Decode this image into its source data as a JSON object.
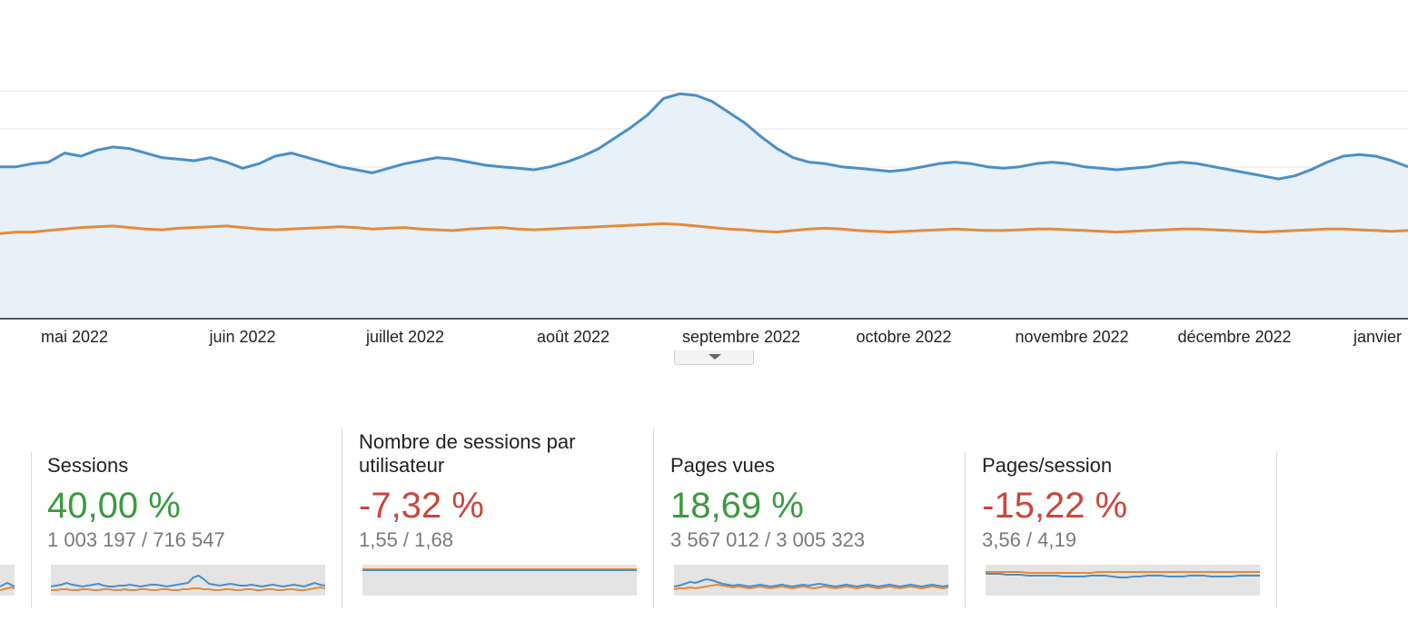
{
  "chart_data": {
    "type": "line",
    "x_axis_labels": [
      "mai 2022",
      "juin 2022",
      "juillet 2022",
      "août 2022",
      "septembre 2022",
      "octobre 2022",
      "novembre 2022",
      "décembre 2022",
      "janvier"
    ],
    "grid": true,
    "series": [
      {
        "color": "#4b8fc5",
        "area": true,
        "values": [
          200,
          200,
          204,
          206,
          218,
          214,
          222,
          226,
          224,
          218,
          212,
          210,
          208,
          212,
          206,
          198,
          204,
          214,
          218,
          212,
          206,
          200,
          196,
          192,
          198,
          204,
          208,
          212,
          210,
          206,
          202,
          200,
          198,
          196,
          200,
          206,
          214,
          224,
          238,
          252,
          268,
          290,
          296,
          294,
          286,
          272,
          258,
          240,
          224,
          212,
          206,
          204,
          200,
          198,
          196,
          194,
          196,
          200,
          204,
          206,
          204,
          200,
          198,
          200,
          204,
          206,
          204,
          200,
          198,
          196,
          198,
          200,
          204,
          206,
          204,
          200,
          196,
          192,
          188,
          184,
          188,
          196,
          206,
          214,
          216,
          214,
          208,
          200
        ]
      },
      {
        "color": "#e38a3a",
        "values": [
          112,
          114,
          114,
          116,
          118,
          120,
          121,
          122,
          120,
          118,
          117,
          119,
          120,
          121,
          122,
          120,
          118,
          117,
          118,
          119,
          120,
          121,
          120,
          118,
          119,
          120,
          118,
          117,
          116,
          118,
          119,
          120,
          118,
          117,
          118,
          119,
          120,
          121,
          122,
          123,
          124,
          125,
          124,
          122,
          120,
          118,
          117,
          115,
          114,
          116,
          118,
          119,
          118,
          116,
          115,
          114,
          115,
          116,
          117,
          118,
          117,
          116,
          116,
          117,
          118,
          118,
          117,
          116,
          115,
          114,
          115,
          116,
          117,
          118,
          118,
          117,
          116,
          115,
          114,
          115,
          116,
          117,
          118,
          118,
          117,
          116,
          115,
          116
        ]
      }
    ]
  },
  "metrics": [
    {
      "title": "Sessions",
      "change": "40,00 %",
      "values": "1 003 197 / 716 547",
      "spark_a": [
        10,
        11,
        12,
        14,
        12,
        11,
        10,
        11,
        12,
        13,
        11,
        10,
        10,
        11,
        11,
        12,
        11,
        10,
        11,
        12,
        12,
        11,
        10,
        11,
        12,
        13,
        14,
        20,
        22,
        18,
        13,
        12,
        11,
        12,
        13,
        12,
        11,
        11,
        12,
        11,
        10,
        11,
        12,
        11,
        10,
        11,
        12,
        11,
        10,
        12,
        14,
        12,
        11
      ],
      "spark_b": [
        6,
        6,
        7,
        7,
        6,
        6,
        7,
        7,
        6,
        6,
        7,
        7,
        6,
        6,
        7,
        6,
        6,
        7,
        7,
        6,
        6,
        7,
        7,
        6,
        6,
        7,
        7,
        8,
        8,
        7,
        7,
        6,
        6,
        7,
        7,
        6,
        6,
        7,
        7,
        6,
        6,
        7,
        7,
        6,
        6,
        7,
        7,
        6,
        6,
        7,
        8,
        9,
        8
      ]
    },
    {
      "title": "Nombre de sessions par utilisateur",
      "change": "-7,32 %",
      "values": "1,55 / 1,68",
      "spark_a": [
        28,
        28,
        28,
        28,
        28,
        28,
        28,
        28,
        28,
        28,
        28,
        28,
        28,
        28,
        28,
        28,
        28,
        28,
        28,
        28,
        28,
        28,
        28,
        28,
        28,
        28,
        28,
        28,
        28,
        28,
        28,
        28,
        28,
        28,
        28,
        28,
        28,
        28,
        28,
        28
      ],
      "spark_b": [
        29,
        29,
        29,
        29,
        29,
        29,
        29,
        29,
        29,
        29,
        29,
        29,
        29,
        29,
        29,
        29,
        29,
        29,
        29,
        29,
        29,
        29,
        29,
        29,
        29,
        29,
        29,
        29,
        29,
        29,
        29,
        29,
        29,
        29,
        29,
        29,
        29,
        29,
        29,
        29
      ]
    },
    {
      "title": "Pages vues",
      "change": "18,69 %",
      "values": "3 567 012 / 3 005 323",
      "spark_a": [
        10,
        11,
        13,
        15,
        14,
        16,
        18,
        17,
        15,
        13,
        12,
        11,
        12,
        11,
        10,
        11,
        12,
        11,
        10,
        11,
        12,
        11,
        10,
        11,
        12,
        11,
        12,
        13,
        12,
        11,
        10,
        11,
        12,
        11,
        10,
        11,
        12,
        11,
        10,
        11,
        12,
        11,
        10,
        11,
        12,
        11,
        10,
        11,
        12,
        11,
        10,
        11
      ],
      "spark_b": [
        7,
        8,
        8,
        9,
        8,
        9,
        10,
        11,
        12,
        11,
        10,
        9,
        10,
        9,
        8,
        9,
        10,
        9,
        8,
        9,
        10,
        9,
        8,
        9,
        10,
        9,
        8,
        9,
        10,
        9,
        8,
        9,
        10,
        9,
        8,
        9,
        10,
        9,
        8,
        9,
        10,
        9,
        8,
        9,
        10,
        9,
        8,
        9,
        10,
        9,
        8,
        9
      ]
    },
    {
      "title": "Pages/session",
      "change": "-15,22 %",
      "values": "3,56 / 4,19",
      "spark_a": [
        24,
        24,
        24,
        23,
        23,
        23,
        22,
        22,
        22,
        22,
        22,
        21,
        21,
        21,
        21,
        22,
        22,
        22,
        21,
        20,
        20,
        21,
        21,
        22,
        22,
        22,
        21,
        21,
        21,
        22,
        22,
        22,
        21,
        21,
        21,
        21,
        22,
        22,
        22,
        22
      ],
      "spark_b": [
        26,
        26,
        26,
        26,
        26,
        26,
        25,
        25,
        25,
        25,
        25,
        25,
        25,
        25,
        25,
        25,
        26,
        26,
        26,
        26,
        26,
        26,
        26,
        26,
        26,
        26,
        26,
        26,
        26,
        26,
        26,
        26,
        26,
        26,
        26,
        26,
        26,
        26,
        26,
        26
      ]
    }
  ],
  "partial_metric": {
    "spark_a": [
      10,
      12,
      14,
      12,
      10
    ],
    "spark_b": [
      6,
      7,
      8,
      9,
      8
    ]
  },
  "colors": {
    "series_a": "#4b8fc5",
    "series_b": "#e38a3a",
    "area_fill": "#e8f0f8",
    "positive": "#3b9a3f",
    "negative": "#c9473a"
  }
}
